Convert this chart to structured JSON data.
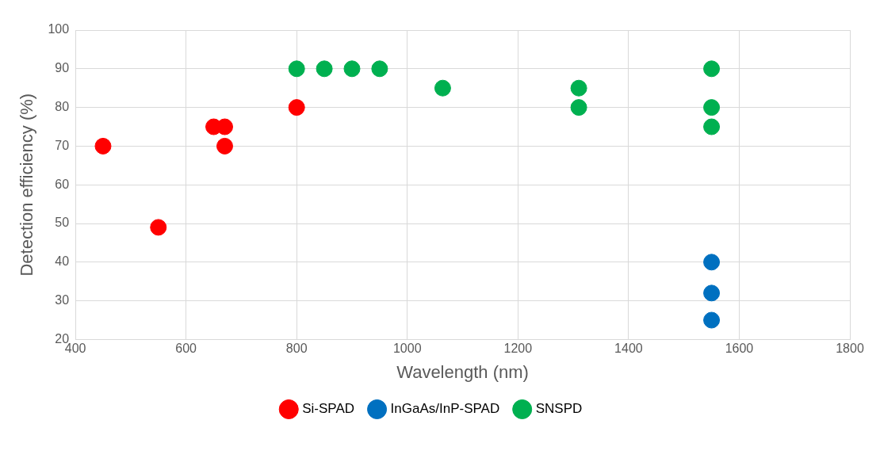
{
  "chart_data": {
    "type": "scatter",
    "xlabel": "Wavelength (nm)",
    "ylabel": "Detection efficiency (%)",
    "xlim": [
      400,
      1800
    ],
    "xticks": [
      400,
      600,
      800,
      1000,
      1200,
      1400,
      1600,
      1800
    ],
    "ylim": [
      20,
      100
    ],
    "yticks": [
      20,
      30,
      40,
      50,
      60,
      70,
      80,
      90,
      100
    ],
    "grid": true,
    "legend": "bottom",
    "marker": "circle",
    "series": [
      {
        "name": "Si-SPAD",
        "color": "#ff0000",
        "x": [
          450,
          550,
          650,
          670,
          670,
          800
        ],
        "values": [
          70,
          49,
          75,
          75,
          70,
          80
        ]
      },
      {
        "name": "InGaAs/InP-SPAD",
        "color": "#0070c0",
        "x": [
          1550,
          1550,
          1550
        ],
        "values": [
          40,
          32,
          25
        ]
      },
      {
        "name": "SNSPD",
        "color": "#00b050",
        "x": [
          800,
          850,
          900,
          950,
          1064,
          1310,
          1310,
          1550,
          1550,
          1550
        ],
        "values": [
          90,
          90,
          90,
          90,
          85,
          85,
          80,
          90,
          80,
          75
        ]
      }
    ]
  }
}
